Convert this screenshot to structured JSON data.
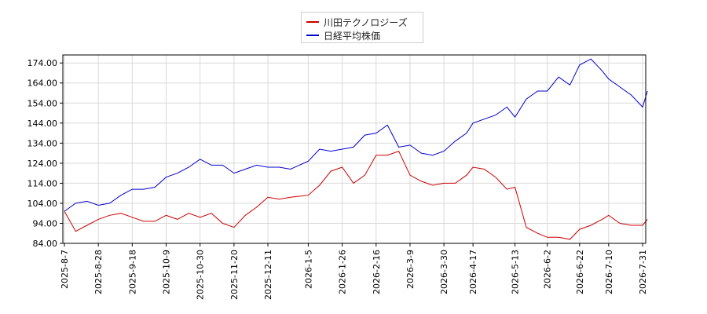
{
  "chart_data": {
    "type": "line",
    "title": "",
    "xlabel": "",
    "ylabel": "",
    "ylim": [
      84,
      178
    ],
    "grid": true,
    "legend_position": "top-center",
    "x_tick_labels": [
      "2025-8-7",
      "2025-8-28",
      "2025-9-18",
      "2025-10-9",
      "2025-10-30",
      "2025-11-20",
      "2025-12-11",
      "2026-1-5",
      "2026-1-26",
      "2026-2-16",
      "2026-3-9",
      "2026-3-30",
      "2026-4-17",
      "2026-5-13",
      "2026-6-2",
      "2026-6-22",
      "2026-7-10",
      "2026-7-31"
    ],
    "y_tick_labels": [
      "84.00",
      "94.00",
      "104.00",
      "114.00",
      "124.00",
      "134.00",
      "144.00",
      "154.00",
      "164.00",
      "174.00"
    ],
    "y_ticks": [
      84,
      94,
      104,
      114,
      124,
      134,
      144,
      154,
      164,
      174
    ],
    "series": [
      {
        "name": "川田テクノロジーズ",
        "color": "#cc0000",
        "x": [
          "2025-8-7",
          "2025-8-14",
          "2025-8-21",
          "2025-8-28",
          "2025-9-4",
          "2025-9-11",
          "2025-9-18",
          "2025-9-25",
          "2025-10-2",
          "2025-10-9",
          "2025-10-16",
          "2025-10-23",
          "2025-10-30",
          "2025-11-6",
          "2025-11-13",
          "2025-11-20",
          "2025-11-27",
          "2025-12-4",
          "2025-12-11",
          "2025-12-18",
          "2025-12-25",
          "2026-1-5",
          "2026-1-12",
          "2026-1-19",
          "2026-1-26",
          "2026-2-2",
          "2026-2-9",
          "2026-2-16",
          "2026-2-23",
          "2026-3-2",
          "2026-3-9",
          "2026-3-16",
          "2026-3-23",
          "2026-3-30",
          "2026-4-6",
          "2026-4-13",
          "2026-4-17",
          "2026-4-24",
          "2026-5-1",
          "2026-5-8",
          "2026-5-13",
          "2026-5-20",
          "2026-5-27",
          "2026-6-2",
          "2026-6-9",
          "2026-6-16",
          "2026-6-22",
          "2026-6-29",
          "2026-7-6",
          "2026-7-10",
          "2026-7-17",
          "2026-7-24",
          "2026-7-31",
          "2026-8-3"
        ],
        "values": [
          100,
          90,
          93,
          96,
          98,
          99,
          97,
          95,
          95,
          98,
          96,
          99,
          97,
          99,
          94,
          92,
          98,
          102,
          107,
          106,
          107,
          108,
          113,
          120,
          122,
          114,
          118,
          128,
          128,
          130,
          118,
          115,
          113,
          114,
          114,
          118,
          122,
          121,
          117,
          111,
          112,
          92,
          89,
          87,
          87,
          86,
          91,
          93,
          96,
          98,
          94,
          93,
          93,
          96
        ]
      },
      {
        "name": "日経平均株価",
        "color": "#0000cc",
        "x": [
          "2025-8-7",
          "2025-8-14",
          "2025-8-21",
          "2025-8-28",
          "2025-9-4",
          "2025-9-11",
          "2025-9-18",
          "2025-9-25",
          "2025-10-2",
          "2025-10-9",
          "2025-10-16",
          "2025-10-23",
          "2025-10-30",
          "2025-11-6",
          "2025-11-13",
          "2025-11-20",
          "2025-11-27",
          "2025-12-4",
          "2025-12-11",
          "2025-12-18",
          "2025-12-25",
          "2026-1-5",
          "2026-1-12",
          "2026-1-19",
          "2026-1-26",
          "2026-2-2",
          "2026-2-9",
          "2026-2-16",
          "2026-2-23",
          "2026-3-2",
          "2026-3-9",
          "2026-3-16",
          "2026-3-23",
          "2026-3-30",
          "2026-4-6",
          "2026-4-13",
          "2026-4-17",
          "2026-4-24",
          "2026-5-1",
          "2026-5-8",
          "2026-5-13",
          "2026-5-20",
          "2026-5-27",
          "2026-6-2",
          "2026-6-9",
          "2026-6-16",
          "2026-6-22",
          "2026-6-29",
          "2026-7-6",
          "2026-7-10",
          "2026-7-17",
          "2026-7-24",
          "2026-7-31",
          "2026-8-3"
        ],
        "values": [
          100,
          104,
          105,
          103,
          104,
          108,
          111,
          111,
          112,
          117,
          119,
          122,
          126,
          123,
          123,
          119,
          121,
          123,
          122,
          122,
          121,
          125,
          131,
          130,
          131,
          132,
          138,
          139,
          143,
          132,
          133,
          129,
          128,
          130,
          135,
          139,
          144,
          146,
          148,
          152,
          147,
          156,
          160,
          160,
          167,
          163,
          173,
          176,
          170,
          166,
          162,
          158,
          152,
          160
        ]
      }
    ]
  }
}
